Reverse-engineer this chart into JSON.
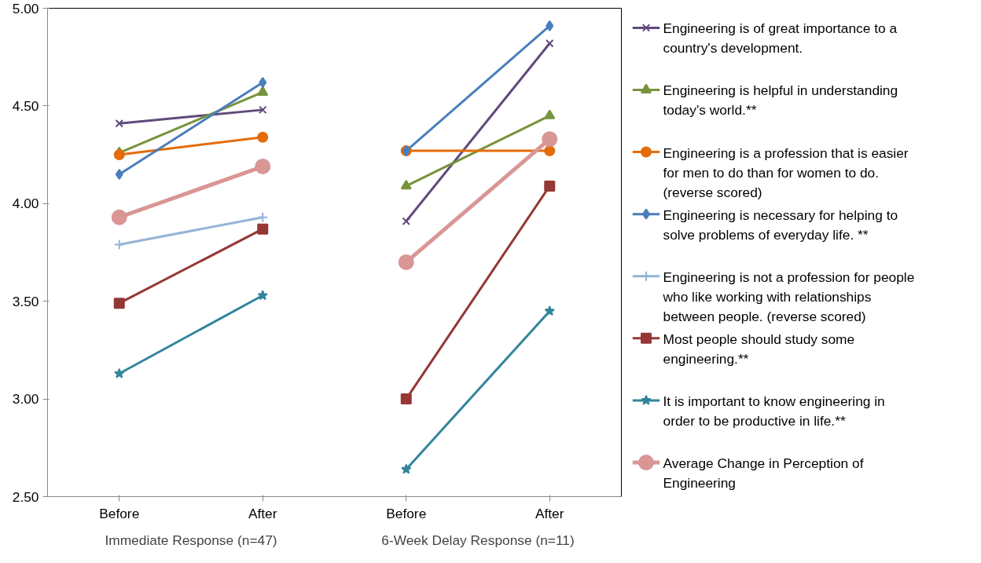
{
  "chart_data": {
    "type": "line",
    "categories": [
      "Before",
      "After",
      "Before",
      "After"
    ],
    "annotations": [
      "Immediate Response (n=47)",
      "6-Week Delay Response (n=11)"
    ],
    "ylim": [
      2.5,
      5.0
    ],
    "yticks": [
      {
        "value": 2.5,
        "label": "2.50"
      },
      {
        "value": 3.0,
        "label": "3.00"
      },
      {
        "value": 3.5,
        "label": "3.50"
      },
      {
        "value": 4.0,
        "label": "4.00"
      },
      {
        "value": 4.5,
        "label": "4.50"
      },
      {
        "value": 5.0,
        "label": "5.00"
      }
    ],
    "grid": false,
    "legend": "right",
    "series": [
      {
        "name": "Engineering is of great importance to a country's development.",
        "color": "#604a7b",
        "marker": "cross",
        "values": [
          4.41,
          4.48,
          3.91,
          4.82
        ]
      },
      {
        "name": "Engineering is helpful in understanding today's world.**",
        "color": "#77933c",
        "marker": "triangle",
        "values": [
          4.26,
          4.57,
          4.09,
          4.45
        ]
      },
      {
        "name": "Engineering is a profession that is easier for men to do than for women to do. (reverse scored)",
        "color": "#e46c0a",
        "marker": "circle",
        "values": [
          4.25,
          4.34,
          4.27,
          4.27
        ]
      },
      {
        "name": "Engineering is necessary for helping to solve problems of everyday life. **",
        "color": "#4a7ebb",
        "marker": "diamond",
        "values": [
          4.15,
          4.62,
          4.27,
          4.91
        ]
      },
      {
        "name": "Engineering is not a profession for people who like working with relationships between people. (reverse scored)",
        "color": "#95b3d7",
        "marker": "plus",
        "values": [
          3.79,
          3.93,
          null,
          null
        ]
      },
      {
        "name": "Most people should study some engineering.**",
        "color": "#953735",
        "marker": "square",
        "values": [
          3.49,
          3.87,
          3.0,
          4.09
        ]
      },
      {
        "name": "It is important to know engineering in order to be productive in life.**",
        "color": "#31859c",
        "marker": "star",
        "values": [
          3.13,
          3.53,
          2.64,
          3.45
        ]
      },
      {
        "name": "Average Change in Perception of Engineering",
        "color": "#d99694",
        "marker": "circle",
        "values": [
          3.93,
          4.19,
          3.7,
          4.33
        ]
      }
    ]
  }
}
